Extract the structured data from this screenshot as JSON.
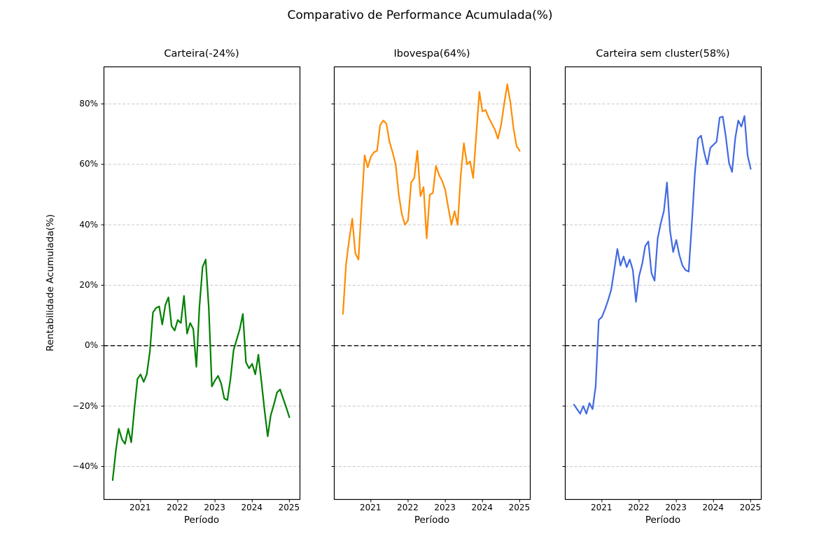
{
  "chart_data": {
    "type": "line",
    "suptitle": "Comparativo de Performance Acumulada(%)",
    "xlabel": "Período",
    "ylabel": "Rentabilidade Acumulada(%)",
    "grid": true,
    "zero_line_value": 0,
    "ylim": [
      -51,
      92.5
    ],
    "x": [
      "2020-04",
      "2020-05",
      "2020-06",
      "2020-07",
      "2020-08",
      "2020-09",
      "2020-10",
      "2020-11",
      "2020-12",
      "2021-01",
      "2021-02",
      "2021-03",
      "2021-04",
      "2021-05",
      "2021-06",
      "2021-07",
      "2021-08",
      "2021-09",
      "2021-10",
      "2021-11",
      "2021-12",
      "2022-01",
      "2022-02",
      "2022-03",
      "2022-04",
      "2022-05",
      "2022-06",
      "2022-07",
      "2022-08",
      "2022-09",
      "2022-10",
      "2022-11",
      "2022-12",
      "2023-01",
      "2023-02",
      "2023-03",
      "2023-04",
      "2023-05",
      "2023-06",
      "2023-07",
      "2023-08",
      "2023-09",
      "2023-10",
      "2023-11",
      "2023-12",
      "2024-01",
      "2024-02",
      "2024-03",
      "2024-04",
      "2024-05",
      "2024-06",
      "2024-07",
      "2024-08",
      "2024-09",
      "2024-10",
      "2024-11",
      "2024-12",
      "2025-01"
    ],
    "xticks": [
      {
        "label": "2021",
        "month_index": 9
      },
      {
        "label": "2022",
        "month_index": 21
      },
      {
        "label": "2023",
        "month_index": 33
      },
      {
        "label": "2024",
        "month_index": 45
      },
      {
        "label": "2025",
        "month_index": 57
      }
    ],
    "yticks": [
      {
        "label": "80%",
        "value": 80
      },
      {
        "label": "60%",
        "value": 60
      },
      {
        "label": "40%",
        "value": 40
      },
      {
        "label": "20%",
        "value": 20
      },
      {
        "label": "0%",
        "value": 0
      },
      {
        "label": "−20%",
        "value": -20
      },
      {
        "label": "−40%",
        "value": -40
      }
    ],
    "panels": [
      {
        "title": "Carteira(-24%)",
        "final_return_pct": -24,
        "color": "#008000",
        "values": [
          -44.5,
          -35,
          -27.5,
          -31,
          -32.5,
          -27.5,
          -32,
          -21,
          -11,
          -9.5,
          -12,
          -9.5,
          -2,
          11,
          12.5,
          13,
          7,
          13.5,
          16,
          6.5,
          5,
          8.5,
          7.5,
          16.5,
          4,
          7.5,
          5.5,
          -7,
          13,
          26,
          28.5,
          12.5,
          -13.5,
          -11.5,
          -10,
          -12.5,
          -17.5,
          -18,
          -11,
          -1.5,
          2,
          5.5,
          10.5,
          -5.5,
          -7.5,
          -6,
          -9.5,
          -3,
          -12,
          -21.5,
          -30,
          -23,
          -19.5,
          -15.5,
          -14.5,
          -17.5,
          -20.5,
          -23.7
        ]
      },
      {
        "title": "Ibovespa(64%)",
        "final_return_pct": 64,
        "color": "#ff8c00",
        "values": [
          10.5,
          27,
          35,
          42,
          30.5,
          28.5,
          46,
          63,
          59,
          62.5,
          64,
          64.5,
          73,
          74.5,
          73.5,
          67.5,
          64,
          60,
          50,
          43.5,
          40,
          41.5,
          54,
          55.5,
          64.5,
          49.5,
          52.5,
          35.5,
          50,
          50.5,
          59.5,
          56.5,
          54.5,
          51.5,
          45.5,
          40,
          44.5,
          40,
          56.5,
          67,
          60,
          61,
          55.5,
          70,
          84,
          77.5,
          78,
          75.5,
          73.5,
          71.5,
          68.5,
          73,
          80,
          86.5,
          80.5,
          72,
          66,
          64.5
        ]
      },
      {
        "title": "Carteira sem cluster(58%)",
        "final_return_pct": 58,
        "color": "#4169e1",
        "values": [
          -19.5,
          -21,
          -22.5,
          -20,
          -22.5,
          -19,
          -21,
          -13.5,
          8.5,
          9.5,
          12,
          15,
          18.5,
          25,
          32,
          26.5,
          29.5,
          26,
          28.5,
          25,
          14.5,
          23,
          27,
          33,
          34.5,
          24,
          21.5,
          35.5,
          40.5,
          44.5,
          54,
          38,
          31,
          35,
          30,
          26.5,
          25,
          24.5,
          40,
          57,
          68.5,
          69.5,
          64,
          60,
          65.5,
          66.5,
          67.5,
          75.5,
          75.8,
          69,
          60.5,
          57.5,
          68.5,
          74.5,
          72.5,
          76,
          63,
          58.5
        ]
      }
    ]
  }
}
